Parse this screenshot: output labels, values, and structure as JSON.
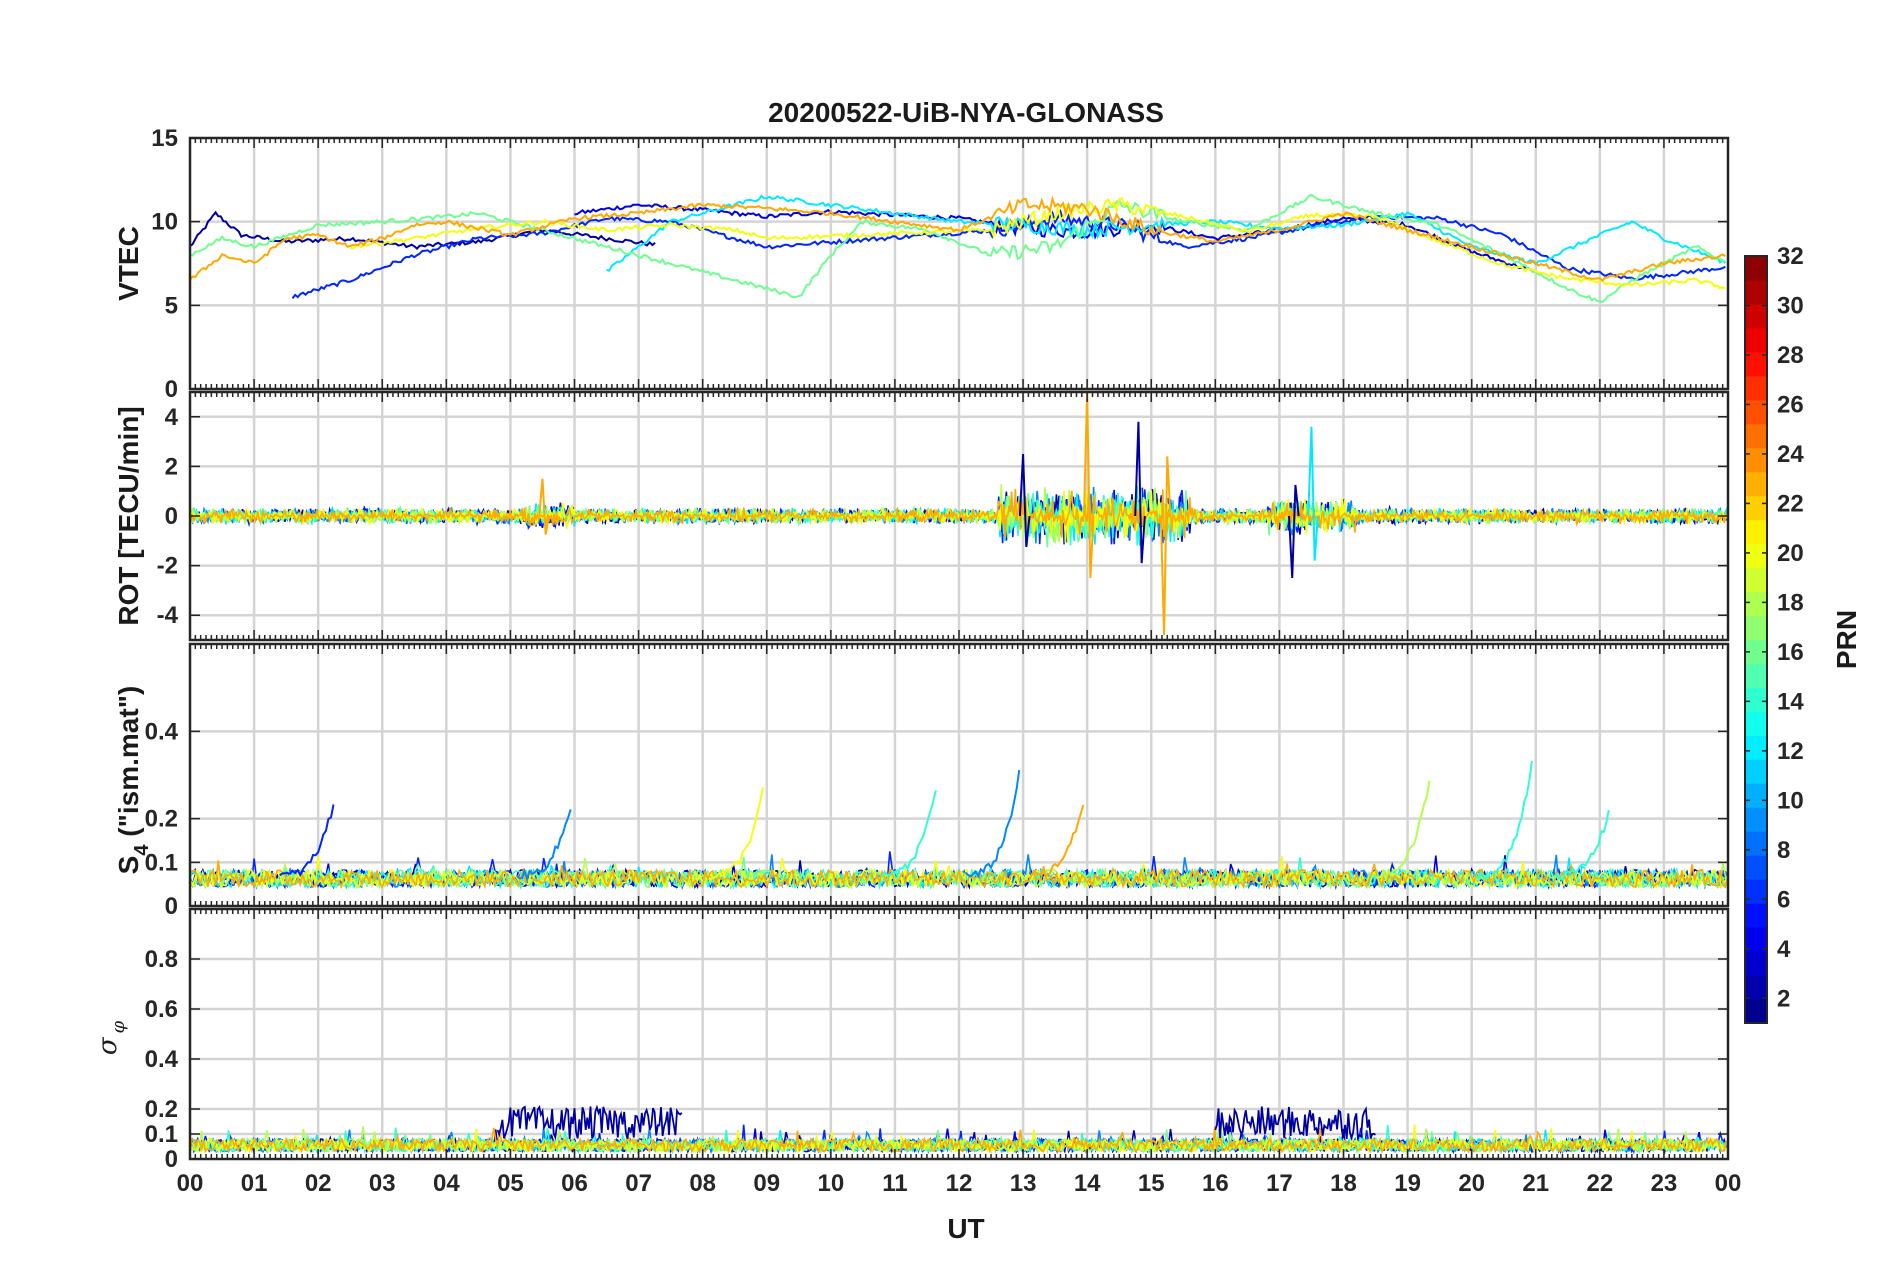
{
  "chart_data": {
    "title": "20200522-UiB-NYA-GLONASS",
    "xlabel": "UT",
    "x_tick_labels": [
      "00",
      "01",
      "02",
      "03",
      "04",
      "05",
      "06",
      "07",
      "08",
      "09",
      "10",
      "11",
      "12",
      "13",
      "14",
      "15",
      "16",
      "17",
      "18",
      "19",
      "20",
      "21",
      "22",
      "23",
      "00"
    ],
    "x_range_hours": [
      0,
      24
    ],
    "grid": true,
    "colorbar": {
      "label": "PRN",
      "range": [
        1,
        32
      ],
      "tick_labels": [
        "2",
        "4",
        "6",
        "8",
        "10",
        "12",
        "14",
        "16",
        "18",
        "20",
        "22",
        "24",
        "26",
        "28",
        "30",
        "32"
      ],
      "colormap": "jet",
      "placement": "right"
    },
    "panels": [
      {
        "id": "vtec",
        "type": "line",
        "ylabel": "VTEC",
        "ylim": [
          0,
          15
        ],
        "y_tick_labels": [
          "0",
          "5",
          "10",
          "15"
        ],
        "series_summary": "multiple satellite tracks, values mostly between 6 and 11, higher near 13-15 UT",
        "series": [
          {
            "prn": 2,
            "x": [
              0,
              0.4,
              0.8,
              1.5,
              2.5,
              3.5,
              4.5,
              5.5,
              6.5,
              7.3
            ],
            "y": [
              8.5,
              10.5,
              9.2,
              8.8,
              9.0,
              8.5,
              8.8,
              9.5,
              9.0,
              8.6
            ]
          },
          {
            "prn": 4,
            "x": [
              6.0,
              7.0,
              8.0,
              9.0,
              10.0,
              11.0,
              12.0,
              13.0,
              14.0,
              15.0,
              16.0,
              17.0,
              18.0,
              19.0,
              20.0,
              21.0
            ],
            "y": [
              10.5,
              11.0,
              10.7,
              10.3,
              10.6,
              10.4,
              10.2,
              9.6,
              9.4,
              9.8,
              9.0,
              9.5,
              10.2,
              9.8,
              8.2,
              7.0
            ]
          },
          {
            "prn": 6,
            "x": [
              1.6,
              2.5,
              3.5,
              4.5,
              5.5,
              6.5,
              7.5,
              8.0,
              8.5,
              9.0,
              12.6,
              13.5,
              14.5,
              15.5,
              16.5,
              17.5,
              18.5,
              19.5,
              20.5,
              21.5,
              22.5,
              23.0,
              24.0
            ],
            "y": [
              5.5,
              6.5,
              8.0,
              9.0,
              9.3,
              10.2,
              10.0,
              9.5,
              9.0,
              8.5,
              9.5,
              10.2,
              9.8,
              8.5,
              9.0,
              9.7,
              10.3,
              10.2,
              9.2,
              7.2,
              6.6,
              6.8,
              7.3
            ]
          },
          {
            "prn": 12,
            "x": [
              6.5,
              7.0,
              7.5,
              8.0,
              9.0,
              10.0,
              11.0,
              12.0,
              13.0,
              14.0,
              15.0,
              16.0,
              17.0,
              18.0,
              19.0,
              20.0,
              21.0,
              22.0,
              22.5,
              23.0,
              24.0
            ],
            "y": [
              7.0,
              8.5,
              10.0,
              10.5,
              11.5,
              11.0,
              10.5,
              10.0,
              9.8,
              9.5,
              9.8,
              10.0,
              9.6,
              9.8,
              10.5,
              8.5,
              7.5,
              9.2,
              10.0,
              9.0,
              7.5
            ]
          },
          {
            "prn": 16,
            "x": [
              0,
              0.5,
              1.0,
              2.0,
              3.0,
              4.0,
              4.5,
              9.5,
              10.0,
              10.5,
              11.5,
              12.5,
              13.5,
              14.5,
              15.5,
              16.5,
              17.5,
              18.5,
              19.5,
              20.5,
              21.5,
              22.0,
              22.5,
              23.5,
              24.0
            ],
            "y": [
              8.0,
              9.0,
              8.5,
              9.8,
              10.0,
              10.3,
              10.5,
              5.5,
              8.0,
              10.0,
              9.5,
              8.0,
              8.5,
              11.0,
              10.0,
              9.5,
              11.5,
              10.5,
              9.8,
              8.0,
              6.0,
              5.2,
              6.5,
              8.5,
              7.5
            ]
          },
          {
            "prn": 20,
            "x": [
              2.5,
              3.5,
              4.5,
              5.5,
              6.5,
              7.5,
              8.5,
              9.0,
              12.5,
              13.5,
              14.5,
              15.5,
              16.5,
              17.5,
              18.5,
              19.5,
              20.5,
              21.5,
              22.5,
              23.5,
              24.0
            ],
            "y": [
              8.5,
              9.0,
              9.6,
              10.0,
              9.5,
              9.8,
              9.5,
              9.0,
              9.5,
              10.5,
              11.0,
              10.3,
              9.4,
              10.4,
              10.3,
              8.8,
              7.4,
              6.6,
              6.2,
              6.5,
              6.0
            ]
          },
          {
            "prn": 23,
            "x": [
              0,
              0.5,
              1.0,
              1.5,
              2.0,
              2.5,
              3.0,
              3.5,
              4.0,
              5.0,
              6.0,
              7.0,
              8.0,
              9.0,
              10.0,
              11.0,
              12.0,
              13.0,
              14.0,
              15.0,
              16.0,
              17.0,
              18.0,
              19.0,
              20.0,
              21.0,
              22.0,
              23.0,
              24.0
            ],
            "y": [
              6.5,
              8.0,
              7.5,
              9.0,
              9.2,
              8.5,
              9.0,
              9.8,
              10.0,
              9.2,
              10.2,
              10.5,
              11.0,
              10.8,
              10.5,
              10.0,
              9.5,
              11.0,
              10.8,
              9.5,
              8.8,
              9.5,
              10.5,
              9.5,
              8.5,
              7.5,
              6.5,
              7.5,
              8.0
            ]
          }
        ]
      },
      {
        "id": "rot",
        "type": "line",
        "ylabel": "ROT [TECU/min]",
        "ylim": [
          -5,
          5
        ],
        "y_tick_labels": [
          "-4",
          "-2",
          "0",
          "2",
          "4"
        ],
        "series_summary": "fluctuations around 0, amplitude below 1 most of the day; strong bursts 13-15.5 UT (up to about +5 and -4.8) and near 17.5 UT",
        "bursts": [
          {
            "x": 5.5,
            "amp": 1.5
          },
          {
            "x": 13.0,
            "amp": 2.5
          },
          {
            "x": 14.0,
            "amp": 5.0
          },
          {
            "x": 14.8,
            "amp": 3.8
          },
          {
            "x": 15.2,
            "amp": -4.8
          },
          {
            "x": 17.5,
            "amp": 3.6
          },
          {
            "x": 17.2,
            "amp": -2.5
          }
        ]
      },
      {
        "id": "s4",
        "type": "line",
        "ylabel": "S4 (\"ism.mat\")",
        "ylabel_main": "S",
        "ylabel_sub": "4",
        "ylabel_rest": " (\"ism.mat\")",
        "ylim": [
          0,
          0.6
        ],
        "y_tick_labels": [
          "0",
          "0.1",
          "0.2",
          "0.4"
        ],
        "y_tick_values": [
          0,
          0.1,
          0.2,
          0.4
        ],
        "series_summary": "baseline about 0.05-0.08, tracks rising to 0.2-0.3 at track ends",
        "peaks": [
          {
            "x": 2.2,
            "y": 0.24
          },
          {
            "x": 5.9,
            "y": 0.23
          },
          {
            "x": 8.9,
            "y": 0.27
          },
          {
            "x": 11.6,
            "y": 0.28
          },
          {
            "x": 12.9,
            "y": 0.31
          },
          {
            "x": 13.9,
            "y": 0.24
          },
          {
            "x": 19.3,
            "y": 0.29
          },
          {
            "x": 20.9,
            "y": 0.34
          },
          {
            "x": 22.1,
            "y": 0.22
          }
        ]
      },
      {
        "id": "sigma",
        "type": "line",
        "ylabel": "σφ",
        "ylabel_main": "σ",
        "ylabel_sub": "φ",
        "ylim": [
          0,
          1
        ],
        "y_tick_labels": [
          "0",
          "0.1",
          "0.2",
          "0.4",
          "0.6",
          "0.8"
        ],
        "y_tick_values": [
          0,
          0.1,
          0.2,
          0.4,
          0.6,
          0.8
        ],
        "series_summary": "values mostly 0.02-0.1; elevated 0.1-0.25 from 4.8 to 7.7 UT and 16 to 18.5 UT",
        "elevated_intervals": [
          {
            "x": [
              4.8,
              7.7
            ],
            "level": 0.15,
            "prn": 2
          },
          {
            "x": [
              16.0,
              18.5
            ],
            "level": 0.15,
            "prn": 2
          }
        ]
      }
    ]
  }
}
